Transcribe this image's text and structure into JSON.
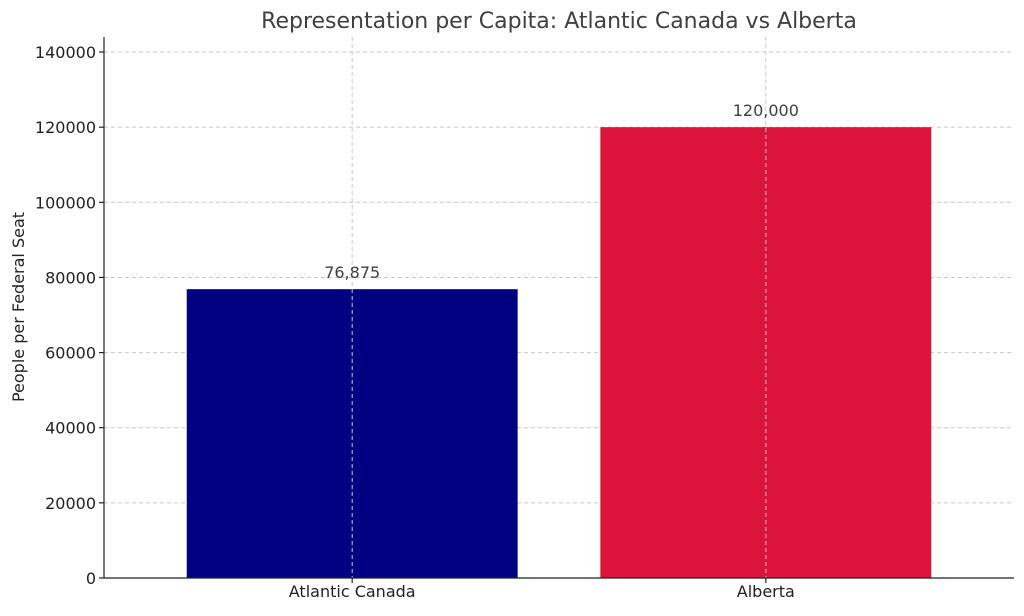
{
  "chart_data": {
    "type": "bar",
    "title": "Representation per Capita: Atlantic Canada vs Alberta",
    "xlabel": "",
    "ylabel": "People per Federal Seat",
    "categories": [
      "Atlantic Canada",
      "Alberta"
    ],
    "values": [
      76875,
      120000
    ],
    "data_labels": [
      "76,875",
      "120,000"
    ],
    "colors": [
      "#000080",
      "#dc143c"
    ],
    "ylim": [
      0,
      144000
    ],
    "yticks": [
      0,
      20000,
      40000,
      60000,
      80000,
      100000,
      120000,
      140000
    ],
    "ytick_labels": [
      "0",
      "20000",
      "40000",
      "60000",
      "80000",
      "100000",
      "120000",
      "140000"
    ],
    "grid": true,
    "legend": false
  }
}
